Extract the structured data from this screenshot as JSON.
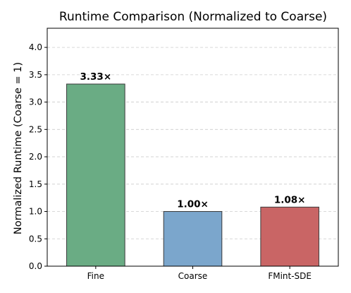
{
  "chart_data": {
    "type": "bar",
    "title": "Runtime Comparison (Normalized to Coarse)",
    "xlabel": "",
    "ylabel": "Normalized Runtime (Coarse = 1)",
    "categories": [
      "Fine",
      "Coarse",
      "FMint-SDE"
    ],
    "values": [
      3.33,
      1.0,
      1.08
    ],
    "data_labels": [
      "3.33×",
      "1.00×",
      "1.08×"
    ],
    "colors": [
      "#6aac84",
      "#7ba6cc",
      "#c96565"
    ],
    "ylim": [
      0,
      4.35
    ],
    "yticks": [
      0.0,
      0.5,
      1.0,
      1.5,
      2.0,
      2.5,
      3.0,
      3.5,
      4.0
    ],
    "ytick_labels": [
      "0.0",
      "0.5",
      "1.0",
      "1.5",
      "2.0",
      "2.5",
      "3.0",
      "3.5",
      "4.0"
    ],
    "grid": "y-dashed",
    "legend": "none"
  }
}
